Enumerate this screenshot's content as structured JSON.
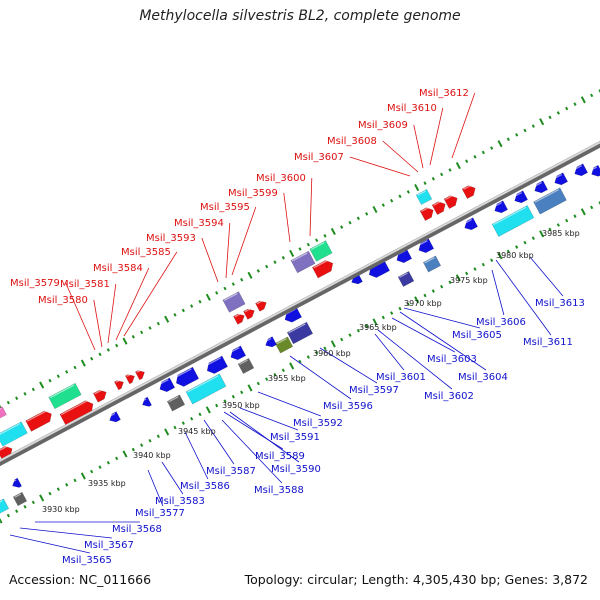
{
  "title": "Methylocella silvestris BL2, complete genome",
  "footer": {
    "accession": "Accession: NC_011666",
    "topology": "Topology: circular; Length: 4,305,430 bp; Genes: 3,872"
  },
  "colors": {
    "top_labels": "#dd1111",
    "bottom_labels": "#1111cc",
    "backbone": "#888888",
    "tick_dots": "#1e8c1e"
  },
  "scale_labels": [
    "3930 kbp",
    "3935 kbp",
    "3940 kbp",
    "3945 kbp",
    "3950 kbp",
    "3955 kbp",
    "3960 kbp",
    "3965 kbp",
    "3970 kbp",
    "3975 kbp",
    "3980 kbp",
    "3985 kbp"
  ],
  "top_gene_labels": [
    "Msil_3579",
    "Msil_3580",
    "Msil_3581",
    "Msil_3584",
    "Msil_3585",
    "Msil_3593",
    "Msil_3594",
    "Msil_3595",
    "Msil_3599",
    "Msil_3600",
    "Msil_3607",
    "Msil_3608",
    "Msil_3609",
    "Msil_3610",
    "Msil_3612"
  ],
  "bottom_gene_labels": [
    "Msil_3565",
    "Msil_3567",
    "Msil_3568",
    "Msil_3577",
    "Msil_3583",
    "Msil_3586",
    "Msil_3587",
    "Msil_3588",
    "Msil_3589",
    "Msil_3590",
    "Msil_3591",
    "Msil_3592",
    "Msil_3596",
    "Msil_3597",
    "Msil_3601",
    "Msil_3602",
    "Msil_3603",
    "Msil_3604",
    "Msil_3605",
    "Msil_3606",
    "Msil_3611",
    "Msil_3613"
  ]
}
